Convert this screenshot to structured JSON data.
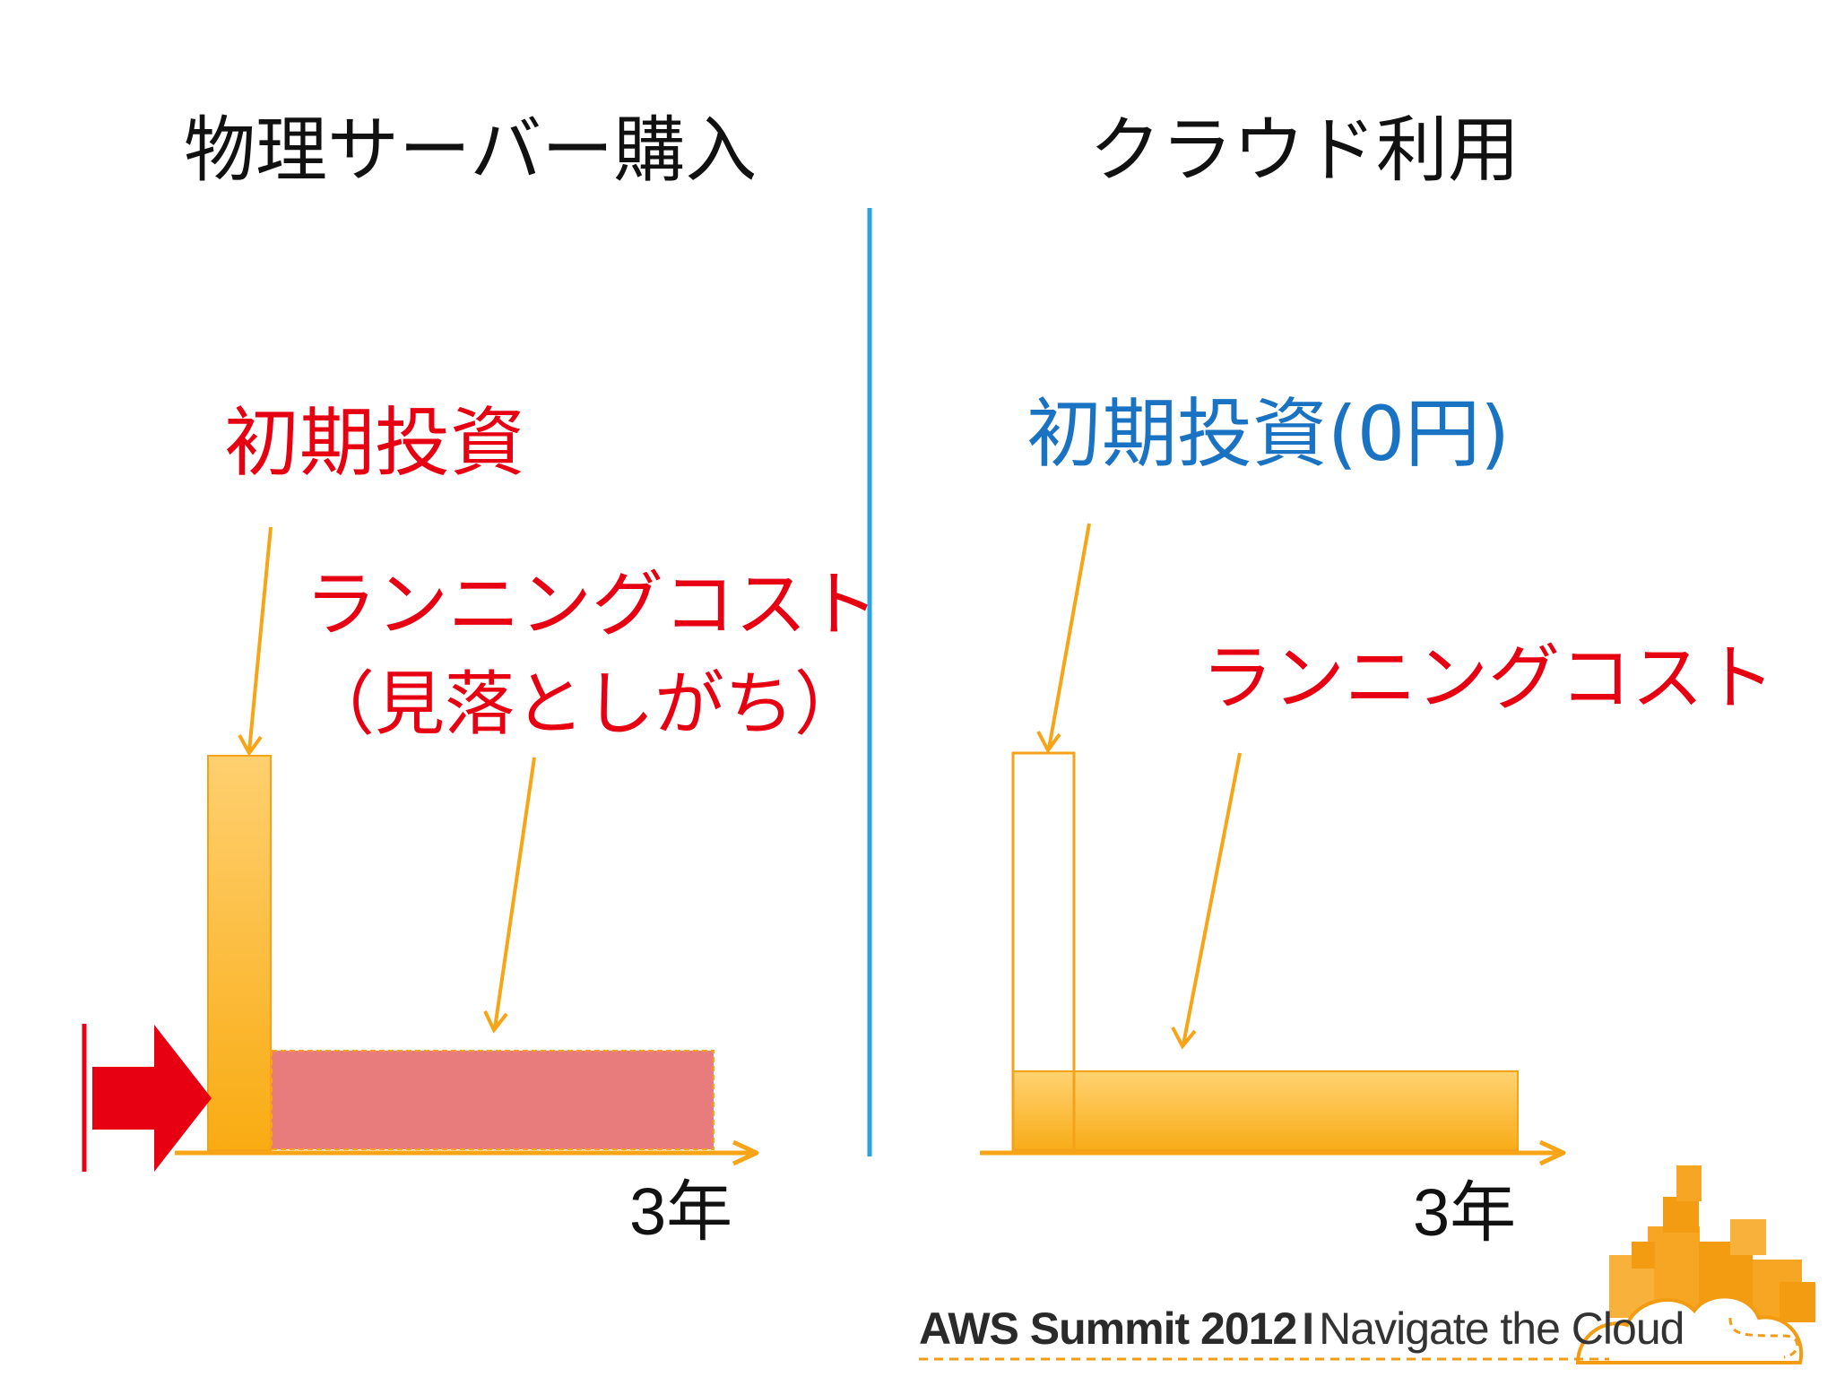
{
  "left_panel": {
    "title": "物理サーバー購入",
    "initial_investment": "初期投資",
    "running_cost_line1": "ランニングコスト",
    "running_cost_line2": "（見落としがち）",
    "x_axis_label": "3年"
  },
  "right_panel": {
    "title": "クラウド利用",
    "initial_investment": "初期投資(0円)",
    "running_cost": "ランニングコスト",
    "x_axis_label": "3年"
  },
  "footer": {
    "event": "AWS Summit 2012",
    "separator": "I",
    "tagline": "Navigate the Cloud"
  },
  "colors": {
    "red_text": "#e60012",
    "blue_text": "#1a72c2",
    "orange": "#f7a516",
    "pink_bar": "#e87c7c",
    "divider": "#29a3e0",
    "red_arrow": "#e60012"
  }
}
